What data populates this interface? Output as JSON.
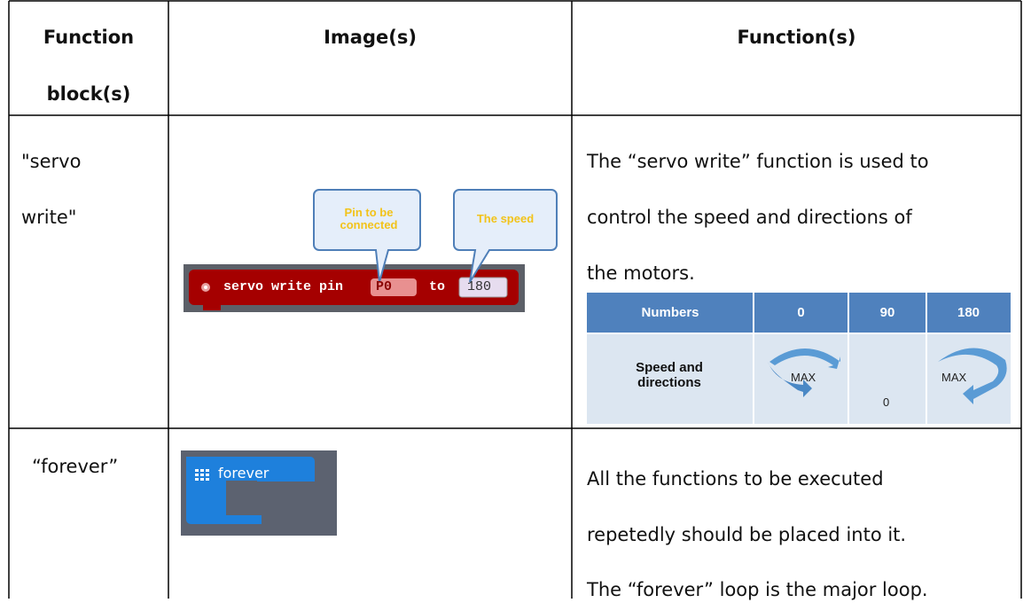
{
  "table": {
    "header": [
      "Function block(s)",
      "Image(s)",
      "Function(s)"
    ],
    "rows": [
      {
        "block": [
          "\"servo",
          "write\""
        ],
        "image": {
          "callouts": [
            "Pin to be connected",
            "The speed"
          ],
          "block": [
            "servo write pin",
            "P0",
            "to",
            "180"
          ]
        },
        "function": [
          "The “servo write” function is used to",
          "control the speed and directions of",
          "the motors."
        ],
        "speed_table": {
          "header": [
            "Numbers",
            "0",
            "90",
            "180"
          ],
          "row": [
            "Speed and directions",
            "MAX",
            "0",
            "MAX"
          ]
        }
      },
      {
        "block": [
          "“forever”"
        ],
        "image": {
          "block": [
            "forever"
          ]
        },
        "function": [
          "All the functions to be executed",
          "repetedly should be placed into it.",
          "The “forever” loop is the major loop."
        ]
      }
    ]
  }
}
